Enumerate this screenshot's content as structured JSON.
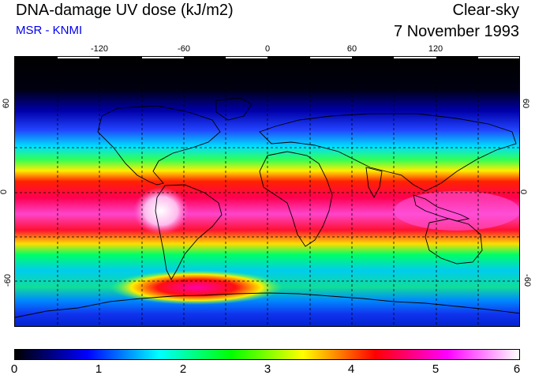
{
  "header": {
    "title": "DNA-damage UV dose (kJ/m2)",
    "credit": "MSR - KNMI",
    "condition": "Clear-sky",
    "date": "7 November 1993"
  },
  "map": {
    "lon_ticks": [
      "-120",
      "-60",
      "0",
      "60",
      "120"
    ],
    "lat_ticks": [
      "60",
      "0",
      "-60"
    ]
  },
  "colorbar": {
    "labels": [
      "0",
      "1",
      "2",
      "3",
      "4",
      "5",
      "6"
    ],
    "colors": [
      "#000000",
      "#0000ff",
      "#00ffff",
      "#00ff00",
      "#ffff00",
      "#ff0000",
      "#ff00ff",
      "#ffffff"
    ]
  }
}
